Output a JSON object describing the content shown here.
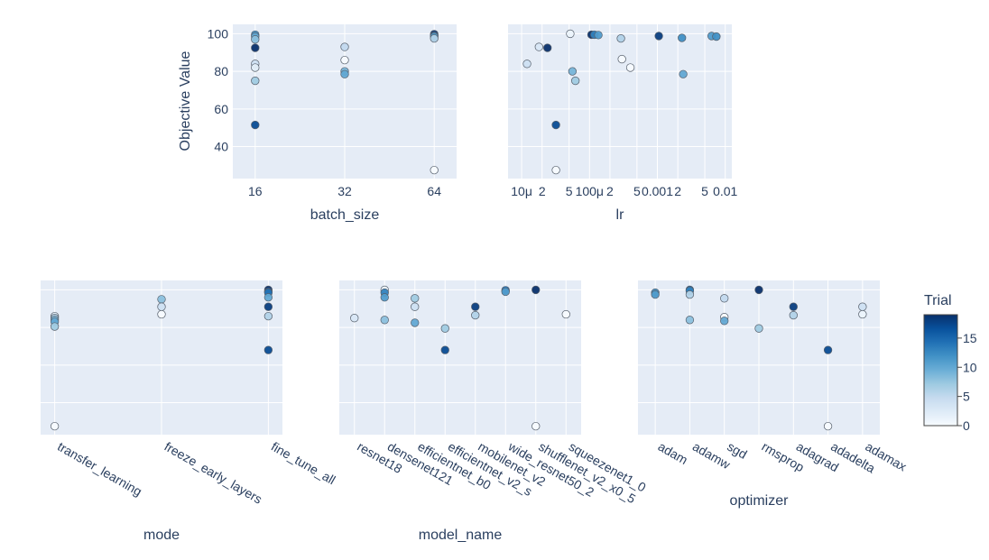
{
  "chart_data": {
    "type": "scatter",
    "colorbar": {
      "title": "Trial",
      "min": 0,
      "max": 19,
      "ticks": [
        0,
        5,
        10,
        15
      ],
      "tick_labels": [
        "0",
        "5",
        "10",
        "15"
      ],
      "colorscale": [
        "#f7fbff",
        "#deebf7",
        "#c6dbef",
        "#9ecae1",
        "#6baed6",
        "#4292c6",
        "#2171b5",
        "#08519c",
        "#08306b"
      ]
    },
    "y_axis": {
      "title": "Objective Value",
      "range": [
        23,
        105
      ],
      "ticks": [
        40,
        60,
        80,
        100
      ],
      "tick_labels": [
        "40",
        "60",
        "80",
        "100"
      ]
    },
    "panels": [
      {
        "id": "batch_size",
        "xlabel": "batch_size",
        "x_kind": "category",
        "categories": [
          "16",
          "32",
          "64"
        ],
        "tick_labels": [
          "16",
          "32",
          "64"
        ],
        "points": [
          {
            "x": "16",
            "y": 99.5,
            "t": 12
          },
          {
            "x": "16",
            "y": 98.5,
            "t": 10
          },
          {
            "x": "16",
            "y": 97,
            "t": 8
          },
          {
            "x": "16",
            "y": 92.5,
            "t": 19
          },
          {
            "x": "16",
            "y": 84,
            "t": 4
          },
          {
            "x": "16",
            "y": 82,
            "t": 2
          },
          {
            "x": "16",
            "y": 75,
            "t": 7
          },
          {
            "x": "16",
            "y": 51.5,
            "t": 17
          },
          {
            "x": "32",
            "y": 93,
            "t": 5
          },
          {
            "x": "32",
            "y": 86,
            "t": 0
          },
          {
            "x": "32",
            "y": 80,
            "t": 9
          },
          {
            "x": "32",
            "y": 78.5,
            "t": 10
          },
          {
            "x": "64",
            "y": 99.8,
            "t": 19
          },
          {
            "x": "64",
            "y": 99,
            "t": 14
          },
          {
            "x": "64",
            "y": 98.5,
            "t": 11
          },
          {
            "x": "64",
            "y": 97.5,
            "t": 6
          },
          {
            "x": "64",
            "y": 27.5,
            "t": 0
          }
        ]
      },
      {
        "id": "lr",
        "xlabel": "lr",
        "x_kind": "log",
        "xlim": [
          6.3e-06,
          0.0125
        ],
        "tick_values": [
          1e-05,
          2e-05,
          5e-05,
          0.0001,
          0.0002,
          0.0005,
          0.001,
          0.002,
          0.005,
          0.01
        ],
        "tick_labels": [
          "10μ",
          "2",
          "5",
          "100μ",
          "2",
          "5",
          "0.001",
          "2",
          "5",
          "0.01"
        ],
        "points": [
          {
            "x": 1.2e-05,
            "y": 84,
            "t": 4
          },
          {
            "x": 1.8e-05,
            "y": 93,
            "t": 3
          },
          {
            "x": 2.4e-05,
            "y": 92.5,
            "t": 19
          },
          {
            "x": 3.2e-05,
            "y": 51.5,
            "t": 17
          },
          {
            "x": 3.2e-05,
            "y": 27.5,
            "t": 0
          },
          {
            "x": 5.2e-05,
            "y": 100,
            "t": 1
          },
          {
            "x": 5.6e-05,
            "y": 80,
            "t": 9
          },
          {
            "x": 6.2e-05,
            "y": 75,
            "t": 7
          },
          {
            "x": 0.000107,
            "y": 99.5,
            "t": 19
          },
          {
            "x": 0.000118,
            "y": 99.5,
            "t": 13
          },
          {
            "x": 0.000135,
            "y": 99.3,
            "t": 11
          },
          {
            "x": 0.00029,
            "y": 97.5,
            "t": 6
          },
          {
            "x": 0.0003,
            "y": 86.5,
            "t": 0
          },
          {
            "x": 0.0004,
            "y": 82,
            "t": 0
          },
          {
            "x": 0.00105,
            "y": 98.8,
            "t": 18
          },
          {
            "x": 0.0023,
            "y": 97.8,
            "t": 12
          },
          {
            "x": 0.0024,
            "y": 78.5,
            "t": 10
          },
          {
            "x": 0.0063,
            "y": 98.8,
            "t": 11
          },
          {
            "x": 0.0074,
            "y": 98.5,
            "t": 12
          }
        ]
      },
      {
        "id": "mode",
        "xlabel": "mode",
        "x_kind": "category",
        "categories": [
          "transfer_learning",
          "freeze_early_layers",
          "fine_tune_all"
        ],
        "tick_labels": [
          "transfer_learning",
          "freeze_early_layers",
          "fine_tune_all"
        ],
        "points": [
          {
            "x": "transfer_learning",
            "y": 86,
            "t": 2
          },
          {
            "x": "transfer_learning",
            "y": 85,
            "t": 6
          },
          {
            "x": "transfer_learning",
            "y": 84,
            "t": 9
          },
          {
            "x": "transfer_learning",
            "y": 83,
            "t": 10
          },
          {
            "x": "transfer_learning",
            "y": 80.5,
            "t": 7
          },
          {
            "x": "transfer_learning",
            "y": 27.5,
            "t": 0
          },
          {
            "x": "freeze_early_layers",
            "y": 95,
            "t": 8
          },
          {
            "x": "freeze_early_layers",
            "y": 91,
            "t": 4
          },
          {
            "x": "freeze_early_layers",
            "y": 87,
            "t": 0
          },
          {
            "x": "fine_tune_all",
            "y": 100,
            "t": 19
          },
          {
            "x": "fine_tune_all",
            "y": 99,
            "t": 17
          },
          {
            "x": "fine_tune_all",
            "y": 98.5,
            "t": 14
          },
          {
            "x": "fine_tune_all",
            "y": 96,
            "t": 10
          },
          {
            "x": "fine_tune_all",
            "y": 91,
            "t": 18
          },
          {
            "x": "fine_tune_all",
            "y": 86,
            "t": 6
          },
          {
            "x": "fine_tune_all",
            "y": 68,
            "t": 17
          }
        ]
      },
      {
        "id": "model_name",
        "xlabel": "model_name",
        "x_kind": "category",
        "categories": [
          "resnet18",
          "densenet121",
          "efficientnet_b0",
          "efficientnet_v2_s",
          "mobilenet_v2",
          "wide_resnet50_2",
          "shufflenet_v2_x0_5",
          "squeezenet1_0"
        ],
        "tick_labels": [
          "resnet18",
          "densenet121",
          "efficientnet_b0",
          "efficientnet_v2_s",
          "mobilenet_v2",
          "wide_resnet50_2",
          "shufflenet_v2_x0_5",
          "squeezenet1_0"
        ],
        "points": [
          {
            "x": "resnet18",
            "y": 85,
            "t": 3
          },
          {
            "x": "densenet121",
            "y": 100,
            "t": 1
          },
          {
            "x": "densenet121",
            "y": 98.5,
            "t": 13
          },
          {
            "x": "densenet121",
            "y": 96,
            "t": 11
          },
          {
            "x": "densenet121",
            "y": 84,
            "t": 8
          },
          {
            "x": "efficientnet_b0",
            "y": 95.5,
            "t": 7
          },
          {
            "x": "efficientnet_b0",
            "y": 91,
            "t": 4
          },
          {
            "x": "efficientnet_b0",
            "y": 82.5,
            "t": 10
          },
          {
            "x": "efficientnet_v2_s",
            "y": 79.5,
            "t": 7
          },
          {
            "x": "efficientnet_v2_s",
            "y": 68,
            "t": 17
          },
          {
            "x": "mobilenet_v2",
            "y": 91,
            "t": 18
          },
          {
            "x": "mobilenet_v2",
            "y": 86.5,
            "t": 6
          },
          {
            "x": "wide_resnet50_2",
            "y": 99.8,
            "t": 14
          },
          {
            "x": "wide_resnet50_2",
            "y": 99,
            "t": 11
          },
          {
            "x": "shufflenet_v2_x0_5",
            "y": 100,
            "t": 19
          },
          {
            "x": "shufflenet_v2_x0_5",
            "y": 27.5,
            "t": 0
          },
          {
            "x": "squeezenet1_0",
            "y": 87,
            "t": 0
          }
        ]
      },
      {
        "id": "optimizer",
        "xlabel": "optimizer",
        "x_kind": "category",
        "categories": [
          "adam",
          "adamw",
          "sgd",
          "rmsprop",
          "adagrad",
          "adadelta",
          "adamax"
        ],
        "tick_labels": [
          "adam",
          "adamw",
          "sgd",
          "rmsprop",
          "adagrad",
          "adadelta",
          "adamax"
        ],
        "points": [
          {
            "x": "adam",
            "y": 98.5,
            "t": 12
          },
          {
            "x": "adam",
            "y": 97.5,
            "t": 11
          },
          {
            "x": "adamw",
            "y": 100,
            "t": 15
          },
          {
            "x": "adamw",
            "y": 99.5,
            "t": 13
          },
          {
            "x": "adamw",
            "y": 97.5,
            "t": 6
          },
          {
            "x": "adamw",
            "y": 84,
            "t": 8
          },
          {
            "x": "sgd",
            "y": 95.5,
            "t": 5
          },
          {
            "x": "sgd",
            "y": 85.5,
            "t": 0
          },
          {
            "x": "sgd",
            "y": 83.5,
            "t": 10
          },
          {
            "x": "rmsprop",
            "y": 100,
            "t": 19
          },
          {
            "x": "rmsprop",
            "y": 79.5,
            "t": 7
          },
          {
            "x": "adagrad",
            "y": 91,
            "t": 18
          },
          {
            "x": "adagrad",
            "y": 86.5,
            "t": 6
          },
          {
            "x": "adadelta",
            "y": 68,
            "t": 17
          },
          {
            "x": "adadelta",
            "y": 27.5,
            "t": 0
          },
          {
            "x": "adamax",
            "y": 91,
            "t": 4
          },
          {
            "x": "adamax",
            "y": 87,
            "t": 1
          }
        ]
      }
    ]
  }
}
